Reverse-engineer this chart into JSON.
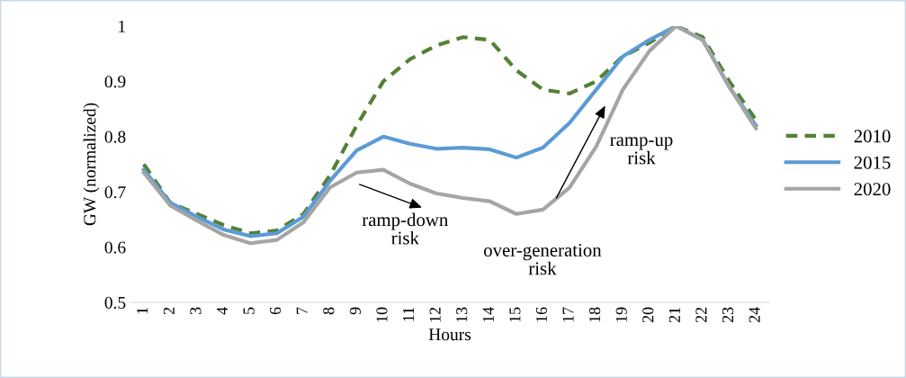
{
  "chart_data": {
    "type": "line",
    "xlabel": "Hours",
    "ylabel": "GW (normalized)",
    "categories": [
      "1",
      "2",
      "3",
      "4",
      "5",
      "6",
      "7",
      "8",
      "9",
      "10",
      "11",
      "12",
      "13",
      "14",
      "15",
      "16",
      "17",
      "18",
      "19",
      "20",
      "21",
      "22",
      "23",
      "24"
    ],
    "series": [
      {
        "name": "2010",
        "color": "#538135",
        "line_style": "dashed",
        "values": [
          0.75,
          0.68,
          0.66,
          0.64,
          0.625,
          0.63,
          0.66,
          0.73,
          0.82,
          0.9,
          0.94,
          0.965,
          0.98,
          0.975,
          0.92,
          0.885,
          0.878,
          0.9,
          0.945,
          0.97,
          1.0,
          0.98,
          0.9,
          0.83
        ]
      },
      {
        "name": "2015",
        "color": "#5b9bd5",
        "line_style": "solid",
        "values": [
          0.74,
          0.68,
          0.655,
          0.632,
          0.62,
          0.625,
          0.655,
          0.72,
          0.775,
          0.8,
          0.787,
          0.778,
          0.78,
          0.777,
          0.762,
          0.78,
          0.825,
          0.885,
          0.945,
          0.975,
          1.0,
          0.975,
          0.89,
          0.82
        ]
      },
      {
        "name": "2020",
        "color": "#a5a5a5",
        "line_style": "solid",
        "values": [
          0.735,
          0.675,
          0.648,
          0.622,
          0.607,
          0.613,
          0.645,
          0.708,
          0.735,
          0.74,
          0.715,
          0.697,
          0.689,
          0.683,
          0.66,
          0.668,
          0.708,
          0.782,
          0.885,
          0.955,
          1.0,
          0.975,
          0.89,
          0.815
        ]
      }
    ],
    "ylim": [
      0.5,
      1
    ],
    "yticks": [
      0.5,
      0.6,
      0.7,
      0.8,
      0.9,
      1
    ],
    "annotations": [
      "ramp-down\nrisk",
      "over-generation\nrisk",
      "ramp-up\nrisk"
    ],
    "grid": false,
    "legend": "right",
    "marker": "none"
  }
}
